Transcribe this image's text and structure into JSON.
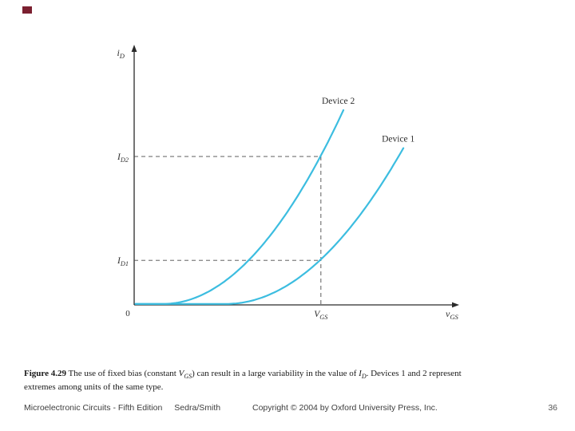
{
  "slide": {
    "background": "#ffffff",
    "corner_mark_color": "#7b2030"
  },
  "chart_data": {
    "type": "line",
    "title": "",
    "xlabel": {
      "base": "v",
      "sub": "GS"
    },
    "ylabel": {
      "base": "i",
      "sub": "D"
    },
    "origin_label": "0",
    "grid": false,
    "legend": "none",
    "axis_color": "#2a2a2a",
    "curve_color": "#3cbde0",
    "dashed_color": "#4a4a4a",
    "label_color": "#2f2f2f",
    "x_range": [
      0,
      1
    ],
    "y_range": [
      0,
      1
    ],
    "bias_x": 0.589,
    "x_axis_marks": [
      {
        "base": "V",
        "sub": "GS",
        "x": 0.589
      }
    ],
    "y_axis_marks": [
      {
        "base": "I",
        "sub": "D2",
        "value": 0.596
      },
      {
        "base": "I",
        "sub": "D1",
        "value": 0.179
      }
    ],
    "series": [
      {
        "name": "Device 2",
        "threshold": 0.091,
        "end_x": 0.66,
        "value_at_bias": 0.596
      },
      {
        "name": "Device 1",
        "threshold": 0.29,
        "end_x": 0.849,
        "value_at_bias": 0.179
      }
    ]
  },
  "caption": {
    "figure_label": "Figure 4.29",
    "text_1": "  The use of fixed bias (constant ",
    "var_1": {
      "base": "V",
      "sub": "GS"
    },
    "text_2": ") can result in a large variability in the value of ",
    "var_2": {
      "base": "I",
      "sub": "D"
    },
    "text_3": ". Devices 1 and 2 represent extremes among units of the same type."
  },
  "footer": {
    "book_title": "Microelectronic Circuits - Fifth Edition",
    "authors": "Sedra/Smith",
    "copyright": "Copyright © 2004 by Oxford University Press, Inc.",
    "page_number": "36"
  }
}
